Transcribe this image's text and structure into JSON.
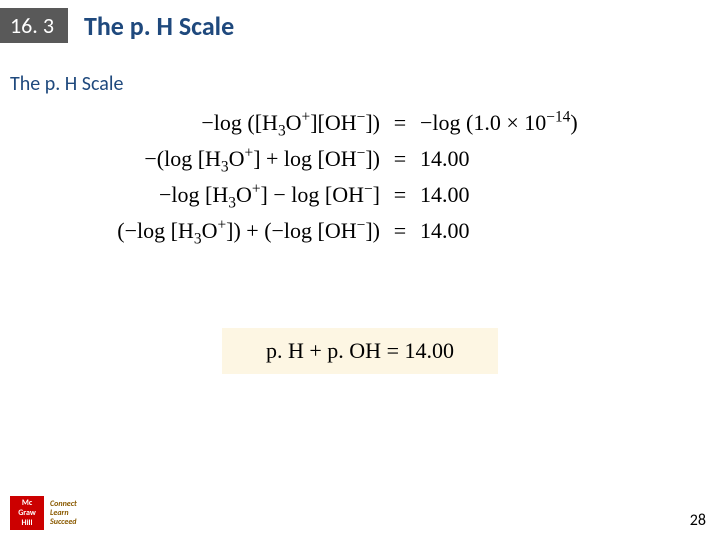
{
  "header": {
    "section": "16. 3",
    "title": "The p. H Scale"
  },
  "subtitle": "The p. H Scale",
  "equations": {
    "row1_left": "−log ([H₃O⁺][OH⁻])",
    "row1_right": "−log (1.0 × 10⁻¹⁴)",
    "row2_left": "−(log [H₃O⁺] + log [OH⁻])",
    "row2_right": "14.00",
    "row3_left": "−log [H₃O⁺] − log [OH⁻]",
    "row3_right": "14.00",
    "row4_left": "(−log [H₃O⁺]) + (−log [OH⁻])",
    "row4_right": "14.00",
    "eq_sign": "="
  },
  "final": "p. H + p. OH = 14.00",
  "logo": {
    "square_line1": "Mc",
    "square_line2": "Graw",
    "square_line3": "Hill",
    "tag_line1": "Connect",
    "tag_line2": "Learn",
    "tag_line3": "Succeed"
  },
  "page_number": "28",
  "colors": {
    "badge_bg": "#595959",
    "badge_fg": "#ffffff",
    "title_color": "#1f497d",
    "final_bg": "#fdf6e3",
    "logo_red": "#cc0000"
  }
}
